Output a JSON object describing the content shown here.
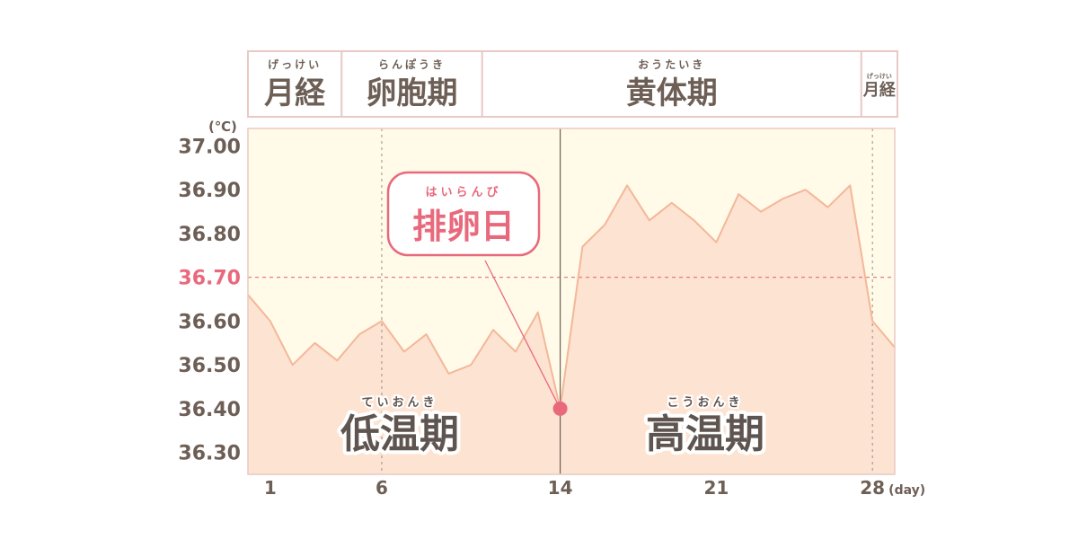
{
  "colors": {
    "band_bg": "#fffbe8",
    "fill_area": "#fde3d2",
    "line": "#f4b79a",
    "accent_pink": "#e9697c",
    "text": "#6e5f56",
    "border": "#e8c9c4"
  },
  "phases_header": [
    {
      "label": "月経",
      "ruby": "げっけい",
      "start_day": 0.0,
      "end_day": 4.2
    },
    {
      "label": "卵胞期",
      "ruby": "らんぽうき",
      "start_day": 4.2,
      "end_day": 10.5
    },
    {
      "label": "黄体期",
      "ruby": "おうたいき",
      "start_day": 10.5,
      "end_day": 27.5
    },
    {
      "label": "月経",
      "ruby": "げっけい",
      "start_day": 27.5,
      "end_day": 29.0
    }
  ],
  "chart_data": {
    "type": "area",
    "unit": "(℃)",
    "x_unit": "(day)",
    "xlim": [
      0.0,
      29.0
    ],
    "ylim": [
      36.25,
      37.04
    ],
    "yticks": [
      "37.00",
      "36.90",
      "36.80",
      "36.70",
      "36.60",
      "36.50",
      "36.40",
      "36.30"
    ],
    "highlight_ytick": "36.70",
    "xticks": [
      1,
      6,
      14,
      21,
      28
    ],
    "grid_x_dashed": [
      6,
      28
    ],
    "ovulation_day": 14,
    "reference_line_y": 36.7,
    "x": [
      0,
      1,
      2,
      3,
      4,
      5,
      6,
      7,
      8,
      9,
      10,
      11,
      12,
      13,
      14,
      15,
      16,
      17,
      18,
      19,
      20,
      21,
      22,
      23,
      24,
      25,
      26,
      27,
      28,
      29
    ],
    "values": [
      36.66,
      36.6,
      36.5,
      36.55,
      36.51,
      36.57,
      36.6,
      36.53,
      36.57,
      36.48,
      36.5,
      36.58,
      36.53,
      36.62,
      36.4,
      36.77,
      36.82,
      36.91,
      36.83,
      36.87,
      36.83,
      36.78,
      36.89,
      36.85,
      36.88,
      36.9,
      36.86,
      36.91,
      36.6,
      36.54
    ]
  },
  "ovulation_callout": {
    "label": "排卵日",
    "ruby": "はいらんび"
  },
  "low_phase": {
    "label": "低温期",
    "ruby": "ていおんき"
  },
  "high_phase": {
    "label": "高温期",
    "ruby": "こうおんき"
  }
}
